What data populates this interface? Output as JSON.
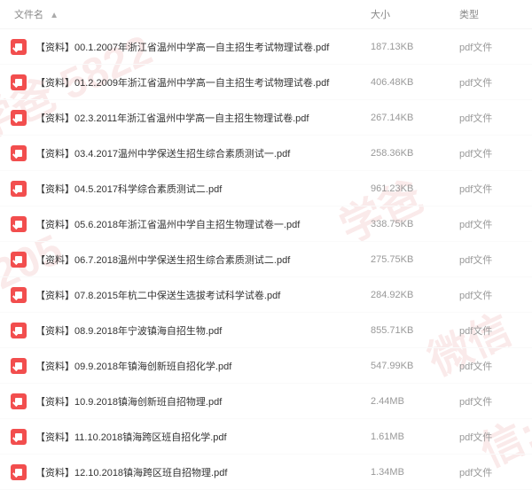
{
  "header": {
    "name_label": "文件名",
    "size_label": "大小",
    "type_label": "类型",
    "sort_arrow": "▲"
  },
  "files": [
    {
      "name": "【资料】00.1.2007年浙江省温州中学高一自主招生考试物理试卷.pdf",
      "size": "187.13KB",
      "type": "pdf文件"
    },
    {
      "name": "【资料】01.2.2009年浙江省温州中学高一自主招生考试物理试卷.pdf",
      "size": "406.48KB",
      "type": "pdf文件"
    },
    {
      "name": "【资料】02.3.2011年浙江省温州中学高一自主招生物理试卷.pdf",
      "size": "267.14KB",
      "type": "pdf文件"
    },
    {
      "name": "【资料】03.4.2017温州中学保送生招生综合素质测试一.pdf",
      "size": "258.36KB",
      "type": "pdf文件"
    },
    {
      "name": "【资料】04.5.2017科学综合素质测试二.pdf",
      "size": "961.23KB",
      "type": "pdf文件"
    },
    {
      "name": "【资料】05.6.2018年浙江省温州中学自主招生物理试卷一.pdf",
      "size": "338.75KB",
      "type": "pdf文件"
    },
    {
      "name": "【资料】06.7.2018温州中学保送生招生综合素质测试二.pdf",
      "size": "275.75KB",
      "type": "pdf文件"
    },
    {
      "name": "【资料】07.8.2015年杭二中保送生选拔考试科学试卷.pdf",
      "size": "284.92KB",
      "type": "pdf文件"
    },
    {
      "name": "【资料】08.9.2018年宁波镇海自招生物.pdf",
      "size": "855.71KB",
      "type": "pdf文件"
    },
    {
      "name": "【资料】09.9.2018年镇海创新班自招化学.pdf",
      "size": "547.99KB",
      "type": "pdf文件"
    },
    {
      "name": "【资料】10.9.2018镇海创新班自招物理.pdf",
      "size": "2.44MB",
      "type": "pdf文件"
    },
    {
      "name": "【资料】11.10.2018镇海跨区班自招化学.pdf",
      "size": "1.61MB",
      "type": "pdf文件"
    },
    {
      "name": "【资料】12.10.2018镇海跨区班自招物理.pdf",
      "size": "1.34MB",
      "type": "pdf文件"
    }
  ],
  "watermark": {
    "text1": "学爸",
    "text2": "5822",
    "text3": "微信"
  },
  "colors": {
    "icon_bg": "#f24e4e",
    "text_primary": "#333333",
    "text_secondary": "#999999",
    "header_text": "#888888",
    "watermark": "#cc0000"
  }
}
